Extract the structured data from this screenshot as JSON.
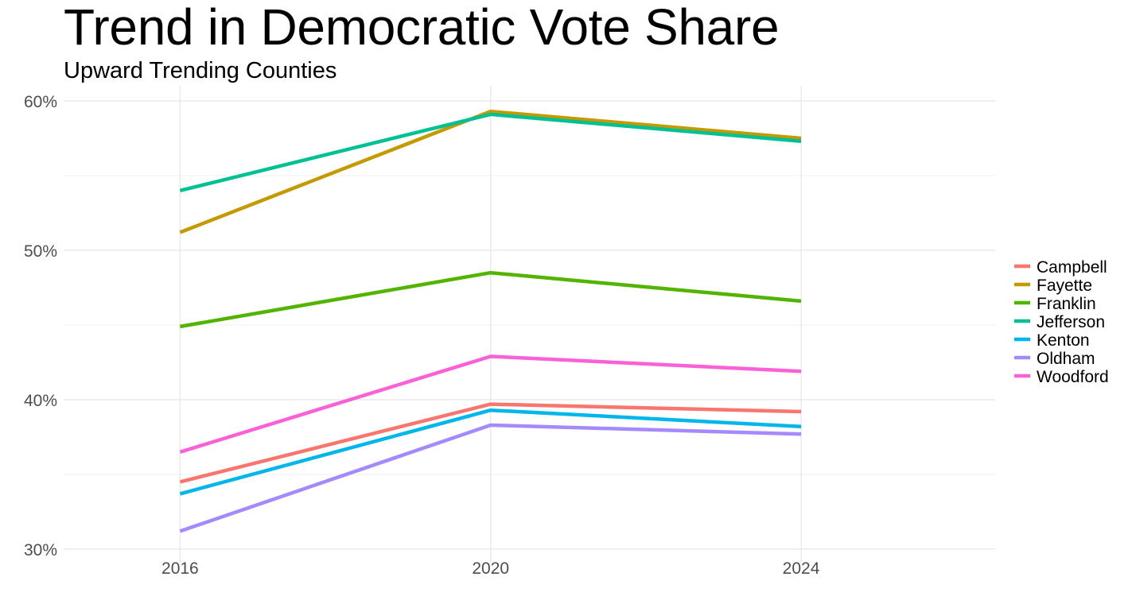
{
  "chart_data": {
    "type": "line",
    "title": "Trend in Democratic Vote Share",
    "subtitle": "Upward Trending Counties",
    "xlabel": "",
    "ylabel": "",
    "x": [
      2016,
      2020,
      2024
    ],
    "x_tick_labels": [
      "2016",
      "2020",
      "2024"
    ],
    "xlim": [
      2014.5,
      2026.5
    ],
    "ylim": [
      30,
      60
    ],
    "y_ticks": [
      30,
      40,
      50,
      60
    ],
    "y_tick_labels": [
      "30%",
      "40%",
      "50%",
      "60%"
    ],
    "y_minor_ticks": [
      35,
      45,
      55
    ],
    "grid": true,
    "legend_position": "right",
    "series": [
      {
        "name": "Campbell",
        "color": "#F8766D",
        "values": [
          34.5,
          39.7,
          39.2
        ]
      },
      {
        "name": "Fayette",
        "color": "#C49A00",
        "values": [
          51.2,
          59.3,
          57.5
        ]
      },
      {
        "name": "Franklin",
        "color": "#53B400",
        "values": [
          44.9,
          48.5,
          46.6
        ]
      },
      {
        "name": "Jefferson",
        "color": "#00C094",
        "values": [
          54.0,
          59.1,
          57.3
        ]
      },
      {
        "name": "Kenton",
        "color": "#00B6EB",
        "values": [
          33.7,
          39.3,
          38.2
        ]
      },
      {
        "name": "Oldham",
        "color": "#A58AFF",
        "values": [
          31.2,
          38.3,
          37.7
        ]
      },
      {
        "name": "Woodford",
        "color": "#FB61D7",
        "values": [
          36.5,
          42.9,
          41.9
        ]
      }
    ]
  }
}
